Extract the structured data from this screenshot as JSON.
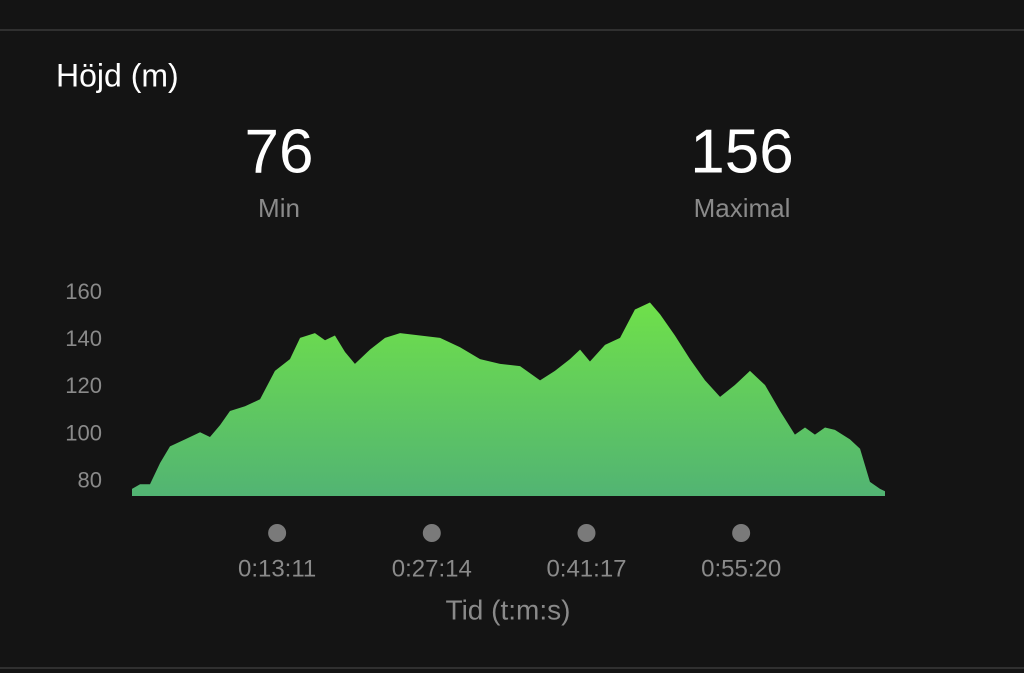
{
  "chart_data": {
    "type": "area",
    "title": "Höjd (m)",
    "stats": [
      {
        "value": 76,
        "label": "Min"
      },
      {
        "value": 156,
        "label": "Maximal"
      }
    ],
    "x_label": "Tid (t:m:s)",
    "x": [
      0,
      44,
      98,
      153,
      207,
      289,
      371,
      425,
      480,
      534,
      616,
      698,
      779,
      861,
      916,
      997,
      1052,
      1106,
      1161,
      1215,
      1297,
      1379,
      1461,
      1570,
      1679,
      1788,
      1897,
      2006,
      2115,
      2224,
      2305,
      2387,
      2442,
      2496,
      2578,
      2660,
      2741,
      2823,
      2878,
      2959,
      3041,
      3123,
      3205,
      3286,
      3368,
      3450,
      3532,
      3613,
      3668,
      3722,
      3777,
      3831,
      3913,
      3968,
      4022,
      4077,
      4104
    ],
    "values": [
      77,
      79,
      79,
      88,
      95,
      98,
      101,
      99,
      104,
      110,
      112,
      115,
      127,
      132,
      141,
      143,
      140,
      142,
      135,
      130,
      136,
      141,
      143,
      142,
      141,
      137,
      132,
      130,
      129,
      123,
      127,
      132,
      136,
      131,
      138,
      141,
      153,
      156,
      151,
      142,
      132,
      123,
      116,
      121,
      127,
      121,
      110,
      100,
      103,
      100,
      103,
      102,
      98,
      94,
      80,
      77,
      76
    ],
    "color_top": "#6fe04a",
    "color_bottom": "#52b473",
    "xlim": [
      0,
      4104
    ],
    "ylim": [
      74,
      160
    ],
    "xticks": [
      {
        "value": 791,
        "label": "0:13:11"
      },
      {
        "value": 1634,
        "label": "0:27:14"
      },
      {
        "value": 2477,
        "label": "0:41:17"
      },
      {
        "value": 3320,
        "label": "0:55:20"
      }
    ],
    "yticks": [
      80,
      100,
      120,
      140,
      160
    ],
    "grid": false
  }
}
